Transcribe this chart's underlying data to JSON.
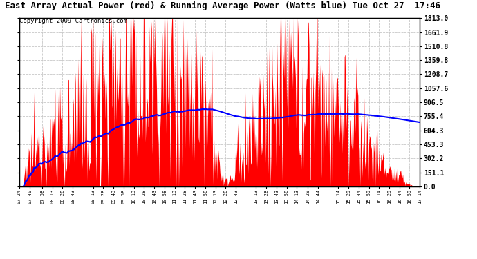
{
  "title": "East Array Actual Power (red) & Running Average Power (Watts blue) Tue Oct 27  17:46",
  "copyright": "Copyright 2009 Cartronics.com",
  "ylabel_right": [
    "0.0",
    "151.1",
    "302.2",
    "453.3",
    "604.3",
    "755.4",
    "906.5",
    "1057.6",
    "1208.7",
    "1359.8",
    "1510.8",
    "1661.9",
    "1813.0"
  ],
  "ytick_vals": [
    0.0,
    151.1,
    302.2,
    453.3,
    604.3,
    755.4,
    906.5,
    1057.6,
    1208.7,
    1359.8,
    1510.8,
    1661.9,
    1813.0
  ],
  "ymax": 1813.0,
  "xtick_labels": [
    "07:24",
    "07:40",
    "07:58",
    "08:13",
    "08:28",
    "08:43",
    "09:13",
    "09:28",
    "09:43",
    "09:58",
    "10:13",
    "10:28",
    "10:43",
    "10:58",
    "11:13",
    "11:28",
    "11:43",
    "11:58",
    "12:13",
    "12:28",
    "12:43",
    "13:13",
    "13:28",
    "13:43",
    "13:58",
    "14:13",
    "14:29",
    "14:44",
    "15:14",
    "15:29",
    "15:44",
    "15:59",
    "16:14",
    "16:29",
    "16:44",
    "16:59",
    "17:14"
  ],
  "bg_color": "#ffffff",
  "grid_color": "#c8c8c8",
  "fill_color": "#ff0000",
  "line_color": "#0000ff",
  "title_fontsize": 9,
  "copyright_fontsize": 6.5,
  "figwidth": 6.9,
  "figheight": 3.75,
  "dpi": 100
}
